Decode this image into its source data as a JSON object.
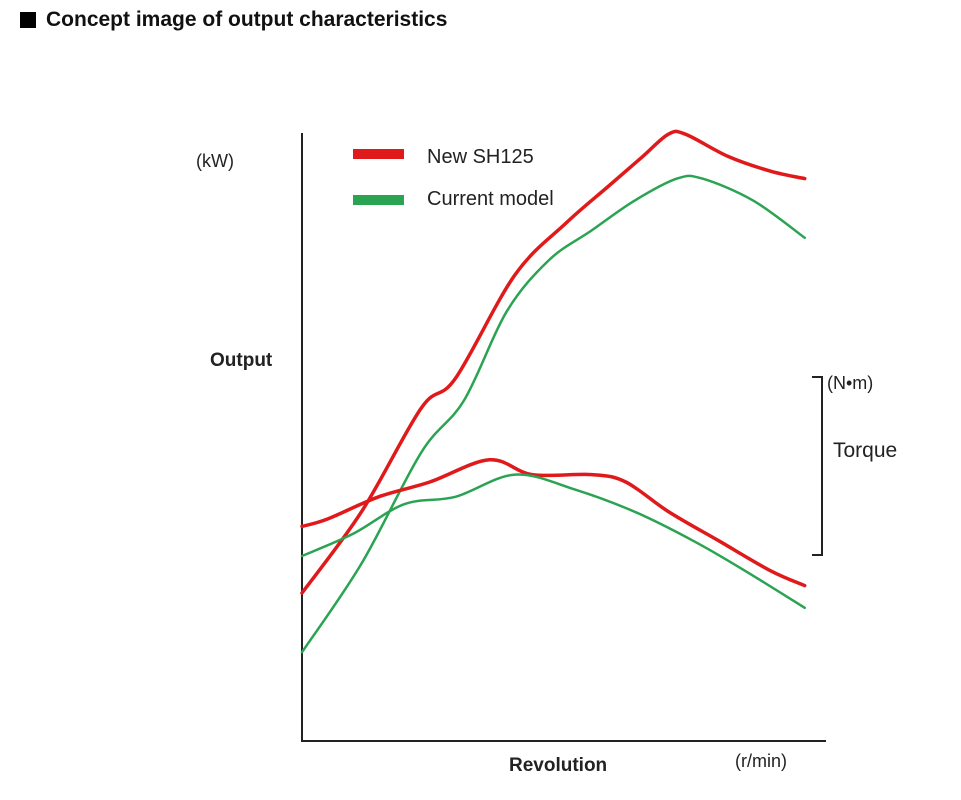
{
  "title": "Concept image of output characteristics",
  "chart_data": {
    "type": "line",
    "title": "Concept image of output characteristics",
    "xlabel": "Revolution",
    "x_unit": "(r/min)",
    "ylabel": "Output",
    "y_unit": "(kW)",
    "y2label": "Torque",
    "y2_unit": "(N•m)",
    "grid": false,
    "legend": "top-left",
    "legend_entries": [
      {
        "name": "New SH125",
        "color": "#e01a1a"
      },
      {
        "name": "Current model",
        "color": "#2aa352"
      }
    ],
    "series": [
      {
        "name": "New SH125",
        "metric": "Output",
        "color": "#e01a1a",
        "points": [
          [
            0,
            0.2
          ],
          [
            0.07,
            0.31
          ],
          [
            0.14,
            0.45
          ],
          [
            0.18,
            0.49
          ],
          [
            0.25,
            0.63
          ],
          [
            0.31,
            0.7
          ],
          [
            0.36,
            0.75
          ],
          [
            0.4,
            0.79
          ],
          [
            0.43,
            0.82
          ],
          [
            0.45,
            0.82
          ],
          [
            0.5,
            0.79
          ],
          [
            0.55,
            0.77
          ],
          [
            0.59,
            0.76
          ]
        ]
      },
      {
        "name": "Current model",
        "metric": "Output",
        "color": "#2aa352",
        "points": [
          [
            0,
            0.12
          ],
          [
            0.07,
            0.24
          ],
          [
            0.14,
            0.39
          ],
          [
            0.19,
            0.46
          ],
          [
            0.24,
            0.58
          ],
          [
            0.29,
            0.65
          ],
          [
            0.34,
            0.69
          ],
          [
            0.39,
            0.73
          ],
          [
            0.44,
            0.76
          ],
          [
            0.47,
            0.76
          ],
          [
            0.53,
            0.73
          ],
          [
            0.59,
            0.68
          ]
        ]
      },
      {
        "name": "New SH125",
        "metric": "Torque",
        "color": "#e01a1a",
        "points": [
          [
            0,
            0.29
          ],
          [
            0.03,
            0.3
          ],
          [
            0.09,
            0.33
          ],
          [
            0.15,
            0.35
          ],
          [
            0.22,
            0.38
          ],
          [
            0.27,
            0.36
          ],
          [
            0.34,
            0.36
          ],
          [
            0.38,
            0.35
          ],
          [
            0.43,
            0.31
          ],
          [
            0.49,
            0.27
          ],
          [
            0.55,
            0.23
          ],
          [
            0.59,
            0.21
          ]
        ]
      },
      {
        "name": "Current model",
        "metric": "Torque",
        "color": "#2aa352",
        "points": [
          [
            0,
            0.25
          ],
          [
            0.06,
            0.28
          ],
          [
            0.12,
            0.32
          ],
          [
            0.18,
            0.33
          ],
          [
            0.25,
            0.36
          ],
          [
            0.32,
            0.34
          ],
          [
            0.39,
            0.31
          ],
          [
            0.46,
            0.27
          ],
          [
            0.52,
            0.23
          ],
          [
            0.59,
            0.18
          ]
        ]
      }
    ]
  }
}
